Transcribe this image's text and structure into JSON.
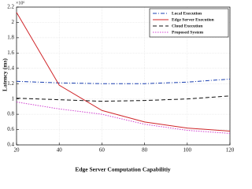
{
  "chart_data": {
    "type": "line",
    "x_label": "Edge Server Computation Capabilitiy",
    "y_label": "Latency (ms)",
    "y_scale_label": "×10⁶",
    "x": [
      20,
      40,
      60,
      80,
      100,
      120
    ],
    "series": [
      {
        "name": "Local Execution",
        "color": "#1a3fb0",
        "dash": "5,2,1,2",
        "values": [
          1.23,
          1.21,
          1.2,
          1.2,
          1.22,
          1.26
        ]
      },
      {
        "name": "Edge Server Execution",
        "color": "#d0262a",
        "dash": "none",
        "values": [
          2.13,
          1.18,
          0.85,
          0.7,
          0.62,
          0.58
        ]
      },
      {
        "name": "Cloud Execution",
        "color": "#111111",
        "dash": "5,3",
        "values": [
          1.01,
          0.99,
          0.97,
          0.98,
          1.0,
          1.04
        ]
      },
      {
        "name": "Proposed System",
        "color": "#d040d0",
        "dash": "1.5,1.5",
        "values": [
          0.96,
          0.87,
          0.8,
          0.67,
          0.59,
          0.55
        ]
      }
    ],
    "xlim": [
      20,
      120
    ],
    "xticks": [
      20,
      40,
      60,
      80,
      100,
      120
    ],
    "ylim": [
      0.4,
      2.2
    ],
    "yticks": [
      0.4,
      0.6,
      0.8,
      1,
      1.2,
      1.4,
      1.6,
      1.8,
      2,
      2.2
    ],
    "grid": true,
    "legend": "top-right"
  }
}
